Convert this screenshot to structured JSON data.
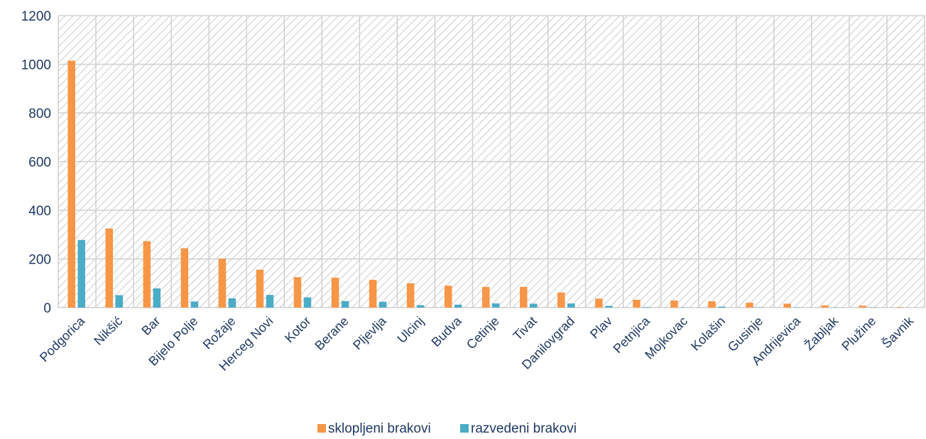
{
  "chart_data": {
    "type": "bar",
    "title": "",
    "xlabel": "",
    "ylabel": "",
    "ylim": [
      0,
      1200
    ],
    "yticks": [
      0,
      200,
      400,
      600,
      800,
      1000,
      1200
    ],
    "grid": true,
    "legend_position": "bottom",
    "categories": [
      "Podgorica",
      "Nikšić",
      "Bar",
      "Bijelo Polje",
      "Rožaje",
      "Herceg Novi",
      "Kotor",
      "Berane",
      "Pljevlja",
      "Ulcinj",
      "Budva",
      "Cetinje",
      "Tivat",
      "Danilovgrad",
      "Plav",
      "Petnjica",
      "Mojkovac",
      "Kolašin",
      "Gusinje",
      "Andrijevica",
      "Žabljak",
      "Plužine",
      "Šavnik"
    ],
    "series": [
      {
        "name": "sklopljeni brakovi",
        "color": "#f79646",
        "values": [
          1015,
          325,
          273,
          244,
          201,
          156,
          125,
          123,
          114,
          100,
          90,
          85,
          85,
          62,
          37,
          32,
          29,
          26,
          20,
          16,
          9,
          8,
          2
        ]
      },
      {
        "name": "razvedeni brakovi",
        "color": "#4bacc6",
        "values": [
          278,
          51,
          79,
          25,
          38,
          52,
          42,
          27,
          24,
          10,
          12,
          17,
          16,
          17,
          7,
          2,
          1,
          4,
          1,
          1,
          1,
          1,
          0
        ]
      }
    ]
  }
}
